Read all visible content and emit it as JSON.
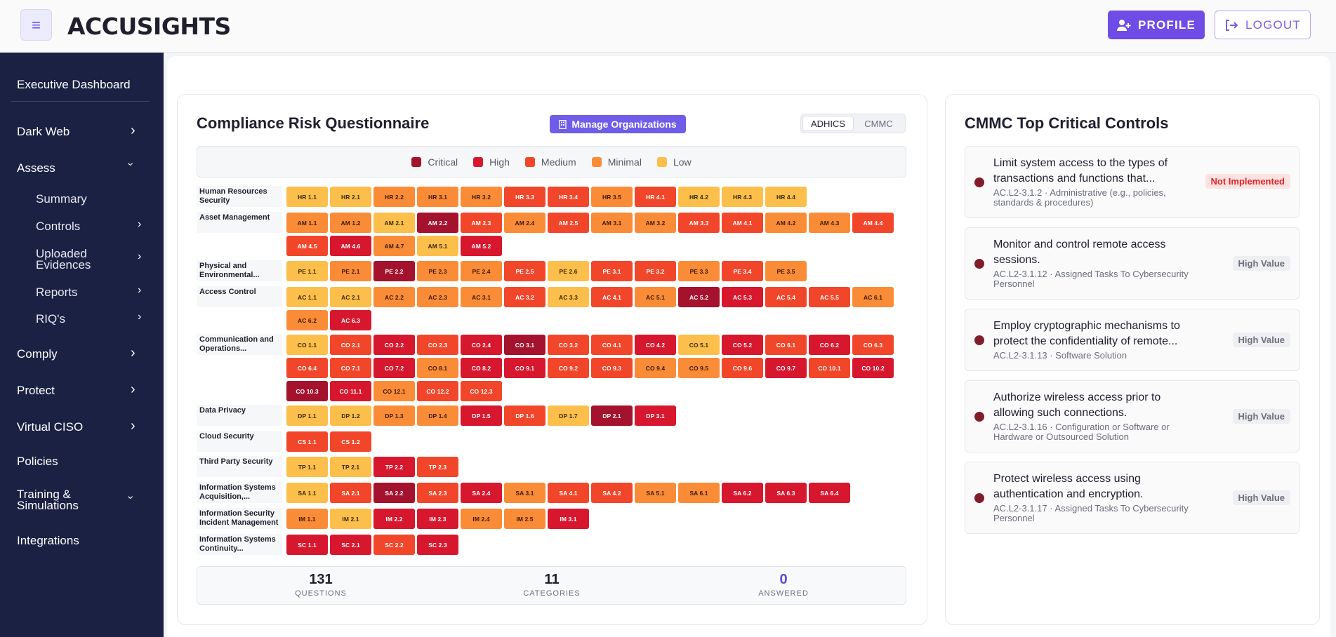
{
  "header": {
    "logo": "ACCUSIGHTS",
    "menu_icon": "hamburger-icon",
    "profile_label": "PROFILE",
    "logout_label": "LOGOUT"
  },
  "sidebar": {
    "executive": "Executive Dashboard",
    "dark_web": "Dark Web",
    "assess": "Assess",
    "summary": "Summary",
    "controls": "Controls",
    "uploaded_1": "Uploaded",
    "uploaded_2": "Evidences",
    "reports": "Reports",
    "riqs": "RIQ's",
    "comply": "Comply",
    "protect": "Protect",
    "virtual_ciso": "Virtual CISO",
    "policies": "Policies",
    "training_1": "Training &",
    "training_2": "Simulations",
    "integrations": "Integrations"
  },
  "questionnaire": {
    "title": "Compliance Risk Questionnaire",
    "manage_label": "Manage Organizations",
    "tabs": [
      "ADHICS",
      "CMMC"
    ],
    "active_tab": "ADHICS",
    "legend": [
      {
        "label": "Critical",
        "color": "#a4122d"
      },
      {
        "label": "High",
        "color": "#d7172e"
      },
      {
        "label": "Medium",
        "color": "#f2462a"
      },
      {
        "label": "Minimal",
        "color": "#fa8c38"
      },
      {
        "label": "Low",
        "color": "#fcbf4b"
      }
    ],
    "rows": [
      {
        "label": "Human Resources Security",
        "cells": [
          [
            "HR 1.1",
            "L"
          ],
          [
            "HR 2.1",
            "L"
          ],
          [
            "HR 2.2",
            "N"
          ],
          [
            "HR 3.1",
            "N"
          ],
          [
            "HR 3.2",
            "N"
          ],
          [
            "HR 3.3",
            "M"
          ],
          [
            "HR 3.4",
            "M"
          ],
          [
            "HR 3.5",
            "N"
          ],
          [
            "HR 4.1",
            "M"
          ],
          [
            "HR 4.2",
            "L"
          ],
          [
            "HR 4.3",
            "L"
          ],
          [
            "HR 4.4",
            "L"
          ]
        ]
      },
      {
        "label": "Asset Management",
        "cells": [
          [
            "AM 1.1",
            "N"
          ],
          [
            "AM 1.2",
            "N"
          ],
          [
            "AM 2.1",
            "L"
          ],
          [
            "AM 2.2",
            "C"
          ],
          [
            "AM 2.3",
            "M"
          ],
          [
            "AM 2.4",
            "N"
          ],
          [
            "AM 2.5",
            "M"
          ],
          [
            "AM 3.1",
            "N"
          ],
          [
            "AM 3.2",
            "N"
          ],
          [
            "AM 3.3",
            "M"
          ],
          [
            "AM 4.1",
            "M"
          ],
          [
            "AM 4.2",
            "N"
          ],
          [
            "AM 4.3",
            "N"
          ],
          [
            "AM 4.4",
            "M"
          ],
          [
            "AM 4.5",
            "M"
          ],
          [
            "AM 4.6",
            "H"
          ],
          [
            "AM 4.7",
            "N"
          ],
          [
            "AM 5.1",
            "L"
          ],
          [
            "AM 5.2",
            "H"
          ]
        ]
      },
      {
        "label": "Physical and Environmental...",
        "cells": [
          [
            "PE 1.1",
            "L"
          ],
          [
            "PE 2.1",
            "N"
          ],
          [
            "PE 2.2",
            "C"
          ],
          [
            "PE 2.3",
            "N"
          ],
          [
            "PE 2.4",
            "N"
          ],
          [
            "PE 2.5",
            "M"
          ],
          [
            "PE 2.6",
            "L"
          ],
          [
            "PE 3.1",
            "M"
          ],
          [
            "PE 3.2",
            "M"
          ],
          [
            "PE 3.3",
            "N"
          ],
          [
            "PE 3.4",
            "M"
          ],
          [
            "PE 3.5",
            "N"
          ]
        ]
      },
      {
        "label": "Access Control",
        "cells": [
          [
            "AC 1.1",
            "L"
          ],
          [
            "AC 2.1",
            "L"
          ],
          [
            "AC 2.2",
            "N"
          ],
          [
            "AC 2.3",
            "N"
          ],
          [
            "AC 3.1",
            "N"
          ],
          [
            "AC 3.2",
            "M"
          ],
          [
            "AC 3.3",
            "L"
          ],
          [
            "AC 4.1",
            "M"
          ],
          [
            "AC 5.1",
            "N"
          ],
          [
            "AC 5.2",
            "C"
          ],
          [
            "AC 5.3",
            "H"
          ],
          [
            "AC 5.4",
            "M"
          ],
          [
            "AC 5.5",
            "M"
          ],
          [
            "AC 6.1",
            "N"
          ],
          [
            "AC 6.2",
            "N"
          ],
          [
            "AC 6.3",
            "H"
          ]
        ]
      },
      {
        "label": "Communication and Operations...",
        "cells": [
          [
            "CO 1.1",
            "L"
          ],
          [
            "CO 2.1",
            "M"
          ],
          [
            "CO 2.2",
            "H"
          ],
          [
            "CO 2.3",
            "M"
          ],
          [
            "CO 2.4",
            "H"
          ],
          [
            "CO 3.1",
            "C"
          ],
          [
            "CO 3.2",
            "M"
          ],
          [
            "CO 4.1",
            "M"
          ],
          [
            "CO 4.2",
            "H"
          ],
          [
            "CO 5.1",
            "L"
          ],
          [
            "CO 5.2",
            "H"
          ],
          [
            "CO 6.1",
            "M"
          ],
          [
            "CO 6.2",
            "H"
          ],
          [
            "CO 6.3",
            "M"
          ],
          [
            "CO 6.4",
            "M"
          ],
          [
            "CO 7.1",
            "M"
          ],
          [
            "CO 7.2",
            "H"
          ],
          [
            "CO 8.1",
            "N"
          ],
          [
            "CO 8.2",
            "H"
          ],
          [
            "CO 9.1",
            "H"
          ],
          [
            "CO 9.2",
            "M"
          ],
          [
            "CO 9.3",
            "M"
          ],
          [
            "CO 9.4",
            "N"
          ],
          [
            "CO 9.5",
            "N"
          ],
          [
            "CO 9.6",
            "M"
          ],
          [
            "CO 9.7",
            "H"
          ],
          [
            "CO 10.1",
            "M"
          ],
          [
            "CO 10.2",
            "H"
          ],
          [
            "CO 10.3",
            "C"
          ],
          [
            "CO 11.1",
            "H"
          ],
          [
            "CO 12.1",
            "N"
          ],
          [
            "CO 12.2",
            "M"
          ],
          [
            "CO 12.3",
            "M"
          ]
        ]
      },
      {
        "label": "Data Privacy",
        "cells": [
          [
            "DP 1.1",
            "L"
          ],
          [
            "DP 1.2",
            "L"
          ],
          [
            "DP 1.3",
            "N"
          ],
          [
            "DP 1.4",
            "N"
          ],
          [
            "DP 1.5",
            "H"
          ],
          [
            "DP 1.6",
            "M"
          ],
          [
            "DP 1.7",
            "L"
          ],
          [
            "DP 2.1",
            "C"
          ],
          [
            "DP 3.1",
            "H"
          ]
        ]
      },
      {
        "label": "Cloud Security",
        "cells": [
          [
            "CS 1.1",
            "M"
          ],
          [
            "CS 1.2",
            "M"
          ]
        ]
      },
      {
        "label": "Third Party Security",
        "cells": [
          [
            "TP 1.1",
            "L"
          ],
          [
            "TP 2.1",
            "L"
          ],
          [
            "TP 2.2",
            "H"
          ],
          [
            "TP 2.3",
            "M"
          ]
        ]
      },
      {
        "label": "Information Systems Acquisition,...",
        "cells": [
          [
            "SA 1.1",
            "L"
          ],
          [
            "SA 2.1",
            "M"
          ],
          [
            "SA 2.2",
            "C"
          ],
          [
            "SA 2.3",
            "M"
          ],
          [
            "SA 2.4",
            "H"
          ],
          [
            "SA 3.1",
            "N"
          ],
          [
            "SA 4.1",
            "M"
          ],
          [
            "SA 4.2",
            "M"
          ],
          [
            "SA 5.1",
            "N"
          ],
          [
            "SA 6.1",
            "N"
          ],
          [
            "SA 6.2",
            "H"
          ],
          [
            "SA 6.3",
            "H"
          ],
          [
            "SA 6.4",
            "H"
          ]
        ]
      },
      {
        "label": "Information Security Incident Management",
        "cells": [
          [
            "IM 1.1",
            "N"
          ],
          [
            "IM 2.1",
            "L"
          ],
          [
            "IM 2.2",
            "H"
          ],
          [
            "IM 2.3",
            "H"
          ],
          [
            "IM 2.4",
            "N"
          ],
          [
            "IM 2.5",
            "N"
          ],
          [
            "IM 3.1",
            "H"
          ]
        ]
      },
      {
        "label": "Information Systems Continuity...",
        "cells": [
          [
            "SC 1.1",
            "H"
          ],
          [
            "SC 2.1",
            "H"
          ],
          [
            "SC 2.2",
            "M"
          ],
          [
            "SC 2.3",
            "H"
          ]
        ]
      }
    ],
    "stats": [
      {
        "value": "131",
        "label": "QUESTIONS"
      },
      {
        "value": "11",
        "label": "CATEGORIES"
      },
      {
        "value": "0",
        "label": "ANSWERED"
      }
    ]
  },
  "critical_controls": {
    "title": "CMMC Top Critical Controls",
    "items": [
      {
        "title": "Limit system access to the types of transactions and functions that...",
        "meta": "AC.L2-3.1.2 · Administrative (e.g., policies, standards & procedures)",
        "badge": "Not Implemented"
      },
      {
        "title": "Monitor and control remote access sessions.",
        "meta": "AC.L2-3.1.12 · Assigned Tasks To Cybersecurity Personnel",
        "badge": "High Value"
      },
      {
        "title": "Employ cryptographic mechanisms to protect the confidentiality of remote...",
        "meta": "AC.L2-3.1.13 · Software Solution",
        "badge": "High Value"
      },
      {
        "title": "Authorize wireless access prior to allowing such connections.",
        "meta": "AC.L2-3.1.16 · Configuration or Software or Hardware or Outsourced Solution",
        "badge": "High Value"
      },
      {
        "title": "Protect wireless access using authentication and encryption.",
        "meta": "AC.L2-3.1.17 · Assigned Tasks To Cybersecurity Personnel",
        "badge": "High Value"
      }
    ]
  },
  "colors": {
    "accent": "#6f4ce6",
    "sidebar_bg": "#1a2142",
    "C": "#a4122d",
    "H": "#d7172e",
    "M": "#f2462a",
    "N": "#fa8c38",
    "L": "#fcbf4b"
  }
}
